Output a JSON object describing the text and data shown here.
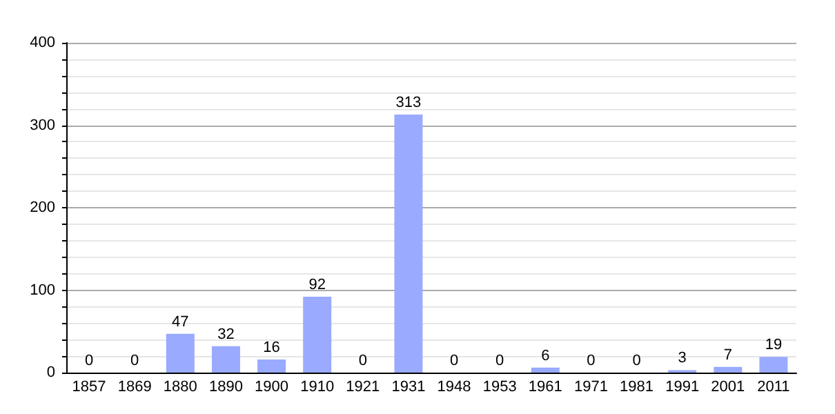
{
  "chart_data": {
    "type": "bar",
    "categories": [
      "1857",
      "1869",
      "1880",
      "1890",
      "1900",
      "1910",
      "1921",
      "1931",
      "1948",
      "1953",
      "1961",
      "1971",
      "1981",
      "1991",
      "2001",
      "2011"
    ],
    "values": [
      0,
      0,
      47,
      32,
      16,
      92,
      0,
      313,
      0,
      0,
      6,
      0,
      0,
      3,
      7,
      19
    ],
    "color": "#99aaff",
    "data_labels": true,
    "ylim": [
      0,
      400
    ],
    "yticks": [
      0,
      {
        "value": 20,
        "label": null
      },
      {
        "value": 40,
        "label": null
      },
      {
        "value": 60,
        "label": null
      },
      {
        "value": 80,
        "label": null
      },
      100,
      {
        "value": 120,
        "label": null
      },
      {
        "value": 140,
        "label": null
      },
      {
        "value": 160,
        "label": null
      },
      {
        "value": 180,
        "label": null
      },
      200,
      {
        "value": 220,
        "label": null
      },
      {
        "value": 240,
        "label": null
      },
      {
        "value": 260,
        "label": null
      },
      {
        "value": 280,
        "label": null
      },
      300,
      {
        "value": 320,
        "label": null
      },
      {
        "value": 340,
        "label": null
      },
      {
        "value": 360,
        "label": null
      },
      {
        "value": 380,
        "label": null
      },
      400
    ],
    "grid": "y"
  }
}
